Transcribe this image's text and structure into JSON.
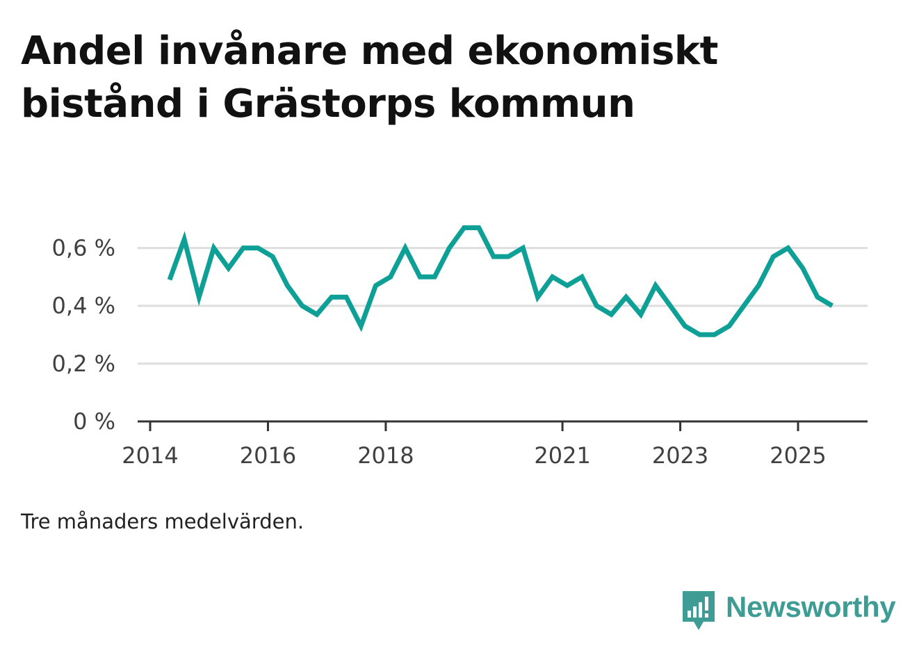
{
  "title": "Andel invånare med ekonomiskt bistånd i Grästorps kommun",
  "footnote": "Tre månaders medelvärden.",
  "brand": {
    "name": "Newsworthy",
    "color": "#3e9c94"
  },
  "chart_data": {
    "type": "line",
    "title": "Andel invånare med ekonomiskt bistånd i Grästorps kommun",
    "xlabel": "",
    "ylabel": "",
    "y_unit": "%",
    "ylim": [
      0,
      0.7
    ],
    "y_ticks": [
      0,
      0.2,
      0.4,
      0.6
    ],
    "y_tick_labels": [
      "0 %",
      "0,2 %",
      "0,4 %",
      "0,6 %"
    ],
    "x_ticks": [
      2014,
      2016,
      2018,
      2021,
      2023,
      2025
    ],
    "x_tick_labels": [
      "2014",
      "2016",
      "2018",
      "2021",
      "2023",
      "2025"
    ],
    "xlim": [
      2014,
      2026.18
    ],
    "grid": true,
    "line_color": "#0ea096",
    "series": [
      {
        "name": "Andel invånare med ekonomiskt bistånd",
        "x": [
          2014.33,
          2014.58,
          2014.83,
          2015.08,
          2015.33,
          2015.58,
          2015.83,
          2016.08,
          2016.33,
          2016.58,
          2016.83,
          2017.08,
          2017.33,
          2017.58,
          2017.83,
          2018.08,
          2018.33,
          2018.58,
          2018.83,
          2019.08,
          2019.33,
          2019.58,
          2019.83,
          2020.08,
          2020.33,
          2020.58,
          2020.83,
          2021.08,
          2021.33,
          2021.58,
          2021.83,
          2022.08,
          2022.33,
          2022.58,
          2022.83,
          2023.08,
          2023.33,
          2023.58,
          2023.83,
          2024.08,
          2024.33,
          2024.58,
          2024.83,
          2025.08,
          2025.33,
          2025.58
        ],
        "values": [
          0.49,
          0.63,
          0.43,
          0.6,
          0.53,
          0.6,
          0.6,
          0.57,
          0.47,
          0.4,
          0.37,
          0.43,
          0.43,
          0.33,
          0.47,
          0.5,
          0.6,
          0.5,
          0.5,
          0.6,
          0.67,
          0.67,
          0.57,
          0.57,
          0.6,
          0.43,
          0.5,
          0.47,
          0.5,
          0.4,
          0.37,
          0.43,
          0.37,
          0.47,
          0.4,
          0.33,
          0.3,
          0.3,
          0.33,
          0.4,
          0.47,
          0.57,
          0.6,
          0.53,
          0.43,
          0.4
        ]
      }
    ]
  }
}
